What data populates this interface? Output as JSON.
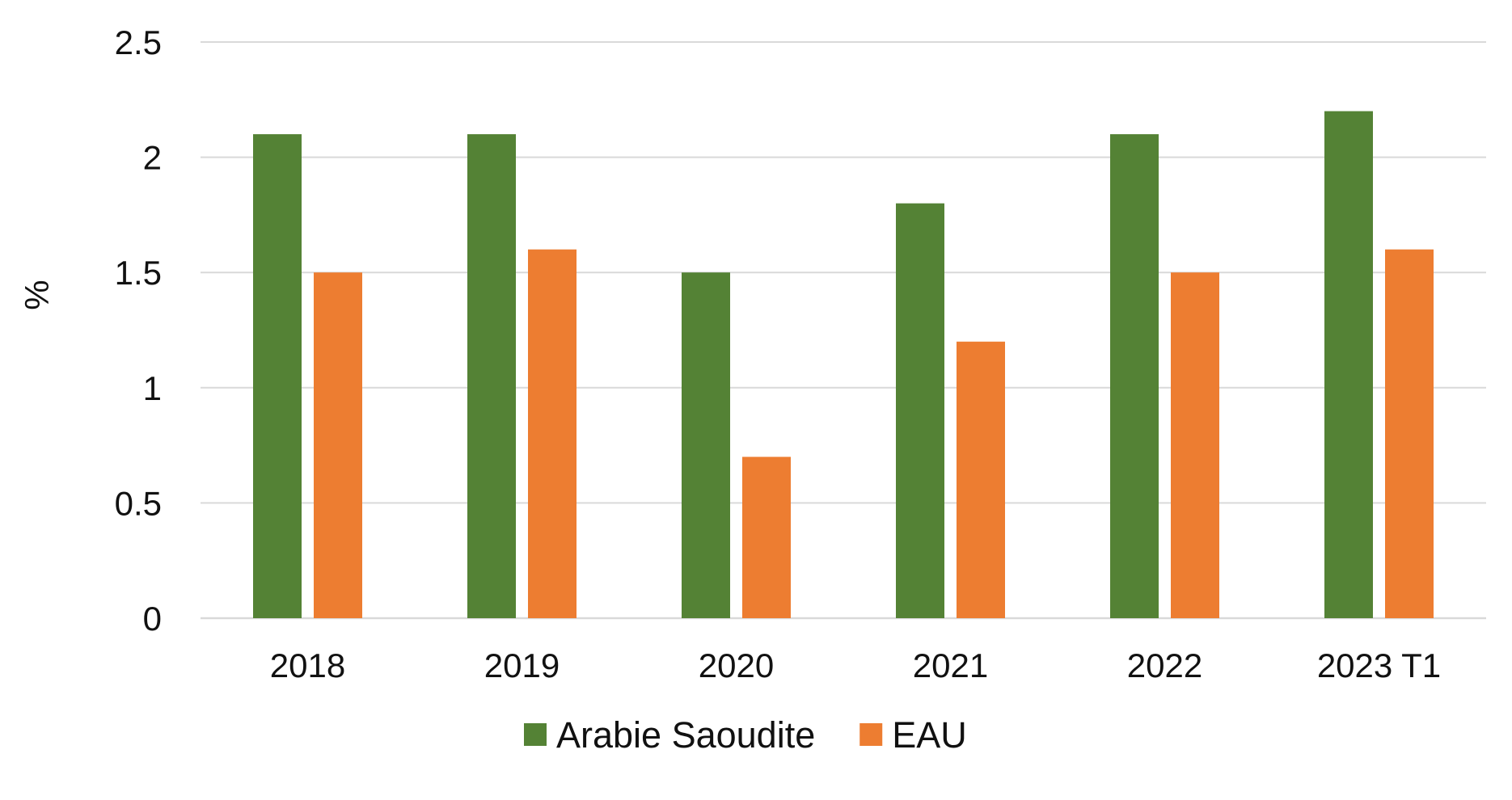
{
  "chart_data": {
    "type": "bar",
    "title": "",
    "xlabel": "",
    "ylabel": "%",
    "ylim": [
      0,
      2.5
    ],
    "yticks": [
      "0",
      "0.5",
      "1",
      "1.5",
      "2",
      "2.5"
    ],
    "grid": true,
    "legend_position": "bottom",
    "categories": [
      "2018",
      "2019",
      "2020",
      "2021",
      "2022",
      "2023 T1"
    ],
    "series": [
      {
        "name": "Arabie Saoudite",
        "color": "#548235",
        "values": [
          2.1,
          2.1,
          1.5,
          1.8,
          2.1,
          2.2
        ]
      },
      {
        "name": "EAU",
        "color": "#ED7D31",
        "values": [
          1.5,
          1.6,
          0.7,
          1.2,
          1.5,
          1.6
        ]
      }
    ]
  }
}
